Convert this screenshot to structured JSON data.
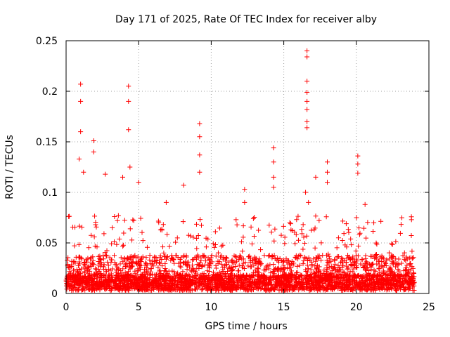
{
  "chart_data": {
    "type": "scatter",
    "title": "Day 171 of 2025, Rate Of TEC Index for receiver alby",
    "xlabel": "GPS time / hours",
    "ylabel": "ROTI / TECUs",
    "xlim": [
      0,
      25
    ],
    "ylim": [
      0,
      0.25
    ],
    "x_ticks": [
      0,
      5,
      10,
      15,
      20,
      25
    ],
    "x_tick_labels": [
      "0",
      "5",
      "10",
      "15",
      "20",
      "25"
    ],
    "y_ticks": [
      0,
      0.05,
      0.1,
      0.15,
      0.2,
      0.25
    ],
    "y_tick_labels": [
      "0",
      "0.05",
      "0.1",
      "0.15",
      "0.2",
      "0.25"
    ],
    "grid": true,
    "marker": "+",
    "series": [
      {
        "name": "ROTI",
        "color": "#ff0000",
        "x_range": [
          0,
          24
        ],
        "baseline_values": [
          0.003,
          0.015
        ],
        "bulk_ceiling": 0.05,
        "points": [
          {
            "x": 1.0,
            "y": 0.207
          },
          {
            "x": 1.0,
            "y": 0.19
          },
          {
            "x": 1.0,
            "y": 0.16
          },
          {
            "x": 0.9,
            "y": 0.133
          },
          {
            "x": 1.2,
            "y": 0.12
          },
          {
            "x": 1.9,
            "y": 0.151
          },
          {
            "x": 1.9,
            "y": 0.14
          },
          {
            "x": 4.3,
            "y": 0.205
          },
          {
            "x": 4.3,
            "y": 0.19
          },
          {
            "x": 4.3,
            "y": 0.162
          },
          {
            "x": 4.4,
            "y": 0.125
          },
          {
            "x": 3.9,
            "y": 0.115
          },
          {
            "x": 9.2,
            "y": 0.168
          },
          {
            "x": 9.2,
            "y": 0.155
          },
          {
            "x": 9.2,
            "y": 0.137
          },
          {
            "x": 9.2,
            "y": 0.12
          },
          {
            "x": 8.1,
            "y": 0.107
          },
          {
            "x": 12.3,
            "y": 0.103
          },
          {
            "x": 12.3,
            "y": 0.09
          },
          {
            "x": 14.3,
            "y": 0.144
          },
          {
            "x": 14.3,
            "y": 0.13
          },
          {
            "x": 14.3,
            "y": 0.115
          },
          {
            "x": 14.3,
            "y": 0.105
          },
          {
            "x": 16.6,
            "y": 0.24
          },
          {
            "x": 16.6,
            "y": 0.234
          },
          {
            "x": 16.6,
            "y": 0.21
          },
          {
            "x": 16.6,
            "y": 0.199
          },
          {
            "x": 16.6,
            "y": 0.19
          },
          {
            "x": 16.6,
            "y": 0.182
          },
          {
            "x": 16.6,
            "y": 0.17
          },
          {
            "x": 16.6,
            "y": 0.164
          },
          {
            "x": 16.5,
            "y": 0.1
          },
          {
            "x": 16.7,
            "y": 0.09
          },
          {
            "x": 17.2,
            "y": 0.115
          },
          {
            "x": 18.0,
            "y": 0.13
          },
          {
            "x": 18.0,
            "y": 0.12
          },
          {
            "x": 18.0,
            "y": 0.11
          },
          {
            "x": 20.1,
            "y": 0.136
          },
          {
            "x": 20.1,
            "y": 0.128
          },
          {
            "x": 20.1,
            "y": 0.119
          },
          {
            "x": 20.6,
            "y": 0.088
          },
          {
            "x": 21.2,
            "y": 0.07
          },
          {
            "x": 23.8,
            "y": 0.073
          },
          {
            "x": 2.7,
            "y": 0.118
          },
          {
            "x": 6.9,
            "y": 0.09
          },
          {
            "x": 5.0,
            "y": 0.11
          }
        ]
      }
    ]
  }
}
